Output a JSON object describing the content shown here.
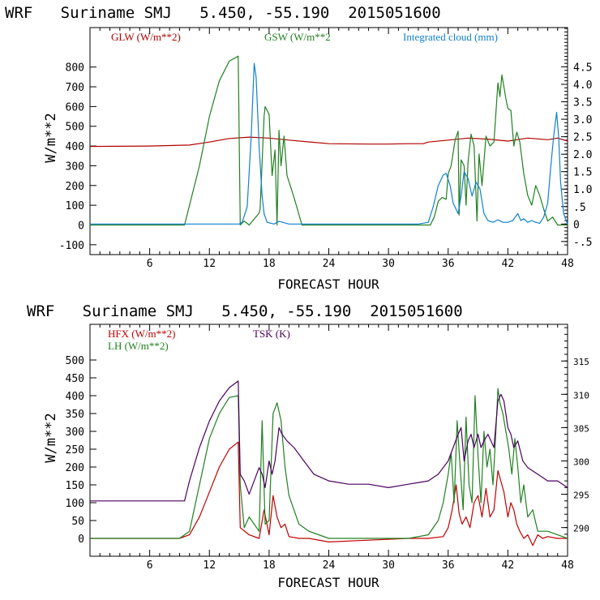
{
  "chart_data": [
    {
      "type": "line",
      "title": "WRF   Suriname SMJ   5.450, -55.190  2015051600",
      "xlabel": "FORECAST HOUR",
      "ylabel": "W/m**2",
      "xlim": [
        0,
        48
      ],
      "ylim": [
        -150,
        1000
      ],
      "y2lim": [
        -0.875,
        5.625
      ],
      "x_ticks": [
        6,
        12,
        18,
        24,
        30,
        36,
        42,
        48
      ],
      "x_tick_labels": [
        "6",
        "12",
        "18",
        "24",
        "30",
        "36",
        "42",
        "48"
      ],
      "y_ticks": [
        -100,
        0,
        100,
        200,
        300,
        400,
        500,
        600,
        700,
        800
      ],
      "y_tick_labels": [
        "-100",
        "0",
        "100",
        "200",
        "300",
        "400",
        "500",
        "600",
        "700",
        "800"
      ],
      "y2_ticks": [
        -0.5,
        0,
        0.5,
        1.0,
        1.5,
        2.0,
        2.5,
        3.0,
        3.5,
        4.0,
        4.5
      ],
      "y2_tick_labels": [
        "-.5",
        "0",
        ".5",
        "1.0",
        "1.5",
        "2.0",
        "2.5",
        "3.0",
        "3.5",
        "4.0",
        "4.5"
      ],
      "series": [
        {
          "name": "GLW (W/m**2)",
          "axis": "left",
          "color": "#b00000",
          "x": [
            0,
            6,
            10,
            12,
            14,
            16,
            18,
            20,
            24,
            28,
            30,
            32,
            33.5,
            34,
            36,
            38,
            40,
            42,
            44,
            46,
            47,
            48
          ],
          "values": [
            398,
            400,
            405,
            420,
            438,
            445,
            440,
            430,
            412,
            410,
            410,
            412,
            412,
            420,
            430,
            440,
            435,
            425,
            440,
            432,
            440,
            425
          ]
        },
        {
          "name": "GSW (W/m**2",
          "axis": "left",
          "color": "#208020",
          "x": [
            0,
            9.5,
            11,
            12,
            13,
            14,
            14.9,
            15.1,
            15.5,
            16,
            17,
            17.1,
            17.5,
            17.6,
            18,
            18.3,
            18.6,
            18.8,
            19,
            19.2,
            19.5,
            19.8,
            20.5,
            21.3,
            22,
            33,
            34.2,
            34.6,
            35,
            35.4,
            35.8,
            36,
            36.3,
            36.7,
            37,
            37.1,
            37.3,
            37.6,
            37.8,
            38,
            38.3,
            38.6,
            38.9,
            39.1,
            39.4,
            39.8,
            40.2,
            40.6,
            41,
            41.2,
            41.4,
            41.6,
            41.8,
            42,
            42.3,
            42.6,
            42.9,
            43.2,
            43.6,
            44,
            44.4,
            44.8,
            45.2,
            45.6,
            46,
            46.5,
            47,
            48
          ],
          "values": [
            0,
            0,
            300,
            550,
            730,
            830,
            855,
            0,
            20,
            0,
            60,
            80,
            550,
            600,
            560,
            250,
            380,
            0,
            480,
            300,
            450,
            250,
            140,
            0,
            0,
            0,
            0,
            40,
            120,
            140,
            130,
            260,
            300,
            430,
            475,
            50,
            330,
            300,
            100,
            320,
            460,
            400,
            20,
            360,
            200,
            450,
            400,
            420,
            720,
            650,
            760,
            700,
            640,
            590,
            580,
            400,
            470,
            420,
            260,
            150,
            100,
            200,
            150,
            80,
            20,
            40,
            0,
            0
          ]
        },
        {
          "name": "Integrated cloud (mm)",
          "axis": "right",
          "color": "#1080d0",
          "x": [
            0,
            15,
            15.3,
            15.8,
            16.2,
            16.5,
            16.7,
            17,
            17.3,
            17.5,
            17.8,
            18.5,
            19,
            20,
            33,
            34,
            34.5,
            35,
            35.5,
            35.8,
            36.2,
            36.5,
            37,
            37.3,
            37.6,
            38,
            38.4,
            38.8,
            39.2,
            39.6,
            40,
            40.5,
            41,
            41.5,
            42,
            42.5,
            43,
            43.3,
            43.6,
            44,
            44.4,
            44.8,
            45.2,
            45.6,
            46,
            46.3,
            46.6,
            46.9,
            47.1,
            47.3,
            47.6,
            48
          ],
          "values": [
            0,
            0,
            0.05,
            0.5,
            2.5,
            4.6,
            4.2,
            2.2,
            0.8,
            0.3,
            0.05,
            0,
            0.08,
            0,
            0,
            0.05,
            0.5,
            1.1,
            1.4,
            1.45,
            1.1,
            0.6,
            0.3,
            0.8,
            1.5,
            1.3,
            0.8,
            1.2,
            1.0,
            0.3,
            0.1,
            0.05,
            0.12,
            0.05,
            0.05,
            0.1,
            0.3,
            0.1,
            0.15,
            0.05,
            0.1,
            0.05,
            0.02,
            0.2,
            0.6,
            1.6,
            2.5,
            3.2,
            2.5,
            1.2,
            0.3,
            0
          ]
        }
      ]
    },
    {
      "type": "line",
      "title": "WRF   Suriname SMJ   5.450, -55.190  2015051600",
      "xlabel": "FORECAST HOUR",
      "ylabel": "W/m**2",
      "xlim": [
        0,
        48
      ],
      "ylim": [
        -50,
        600
      ],
      "y2lim": [
        285.7,
        320.5
      ],
      "x_ticks": [
        6,
        12,
        18,
        24,
        30,
        36,
        42,
        48
      ],
      "x_tick_labels": [
        "6",
        "12",
        "18",
        "24",
        "30",
        "36",
        "42",
        "48"
      ],
      "y_ticks": [
        0,
        50,
        100,
        150,
        200,
        250,
        300,
        350,
        400,
        450,
        500
      ],
      "y_tick_labels": [
        "0",
        "50",
        "100",
        "150",
        "200",
        "250",
        "300",
        "350",
        "400",
        "450",
        "500"
      ],
      "y2_ticks": [
        290,
        295,
        300,
        305,
        310,
        315
      ],
      "y2_tick_labels": [
        "290",
        "295",
        "300",
        "305",
        "310",
        "315"
      ],
      "series": [
        {
          "name": "HFX (W/m**2)",
          "axis": "left",
          "color": "#c00000",
          "x": [
            0,
            9,
            10,
            11,
            12,
            13,
            14,
            14.9,
            15.1,
            16,
            17,
            17.5,
            18,
            18.4,
            18.8,
            19.2,
            19.6,
            20,
            21,
            22,
            24,
            28,
            32,
            34,
            35.5,
            36,
            36.4,
            36.8,
            37.1,
            37.4,
            37.8,
            38.2,
            38.6,
            39,
            39.4,
            39.8,
            40.2,
            40.6,
            41,
            41.3,
            41.6,
            42,
            42.3,
            42.6,
            42.9,
            43.2,
            43.6,
            44,
            44.5,
            45,
            45.5,
            46,
            47,
            48
          ],
          "values": [
            0,
            0,
            10,
            60,
            130,
            200,
            250,
            270,
            30,
            10,
            0,
            80,
            10,
            120,
            60,
            30,
            40,
            5,
            0,
            0,
            -10,
            -5,
            0,
            0,
            5,
            30,
            80,
            150,
            70,
            40,
            60,
            30,
            100,
            120,
            60,
            140,
            60,
            80,
            190,
            160,
            130,
            60,
            100,
            80,
            40,
            20,
            0,
            10,
            -20,
            10,
            0,
            5,
            0,
            0
          ]
        },
        {
          "name": "LH (W/m**2)",
          "axis": "left",
          "color": "#208020",
          "x": [
            0,
            9,
            10,
            11,
            12,
            13,
            14,
            14.9,
            15.1,
            15.5,
            16,
            17,
            17.3,
            17.6,
            18,
            18.4,
            18.8,
            19.2,
            19.6,
            20,
            21,
            22,
            24,
            28,
            32,
            34,
            35,
            35.5,
            36,
            36.3,
            36.6,
            36.9,
            37.2,
            37.5,
            37.8,
            38.1,
            38.4,
            38.7,
            39,
            39.3,
            39.6,
            39.9,
            40.2,
            40.5,
            40.8,
            41,
            41.2,
            41.5,
            41.8,
            42.1,
            42.4,
            42.7,
            43,
            43.3,
            43.6,
            44,
            44.5,
            45,
            46,
            47,
            48
          ],
          "values": [
            0,
            0,
            20,
            150,
            280,
            350,
            395,
            400,
            150,
            30,
            60,
            20,
            330,
            40,
            50,
            350,
            380,
            330,
            200,
            120,
            40,
            20,
            0,
            0,
            0,
            10,
            50,
            100,
            180,
            240,
            100,
            330,
            200,
            80,
            340,
            150,
            100,
            400,
            230,
            100,
            300,
            200,
            250,
            150,
            300,
            420,
            380,
            350,
            300,
            250,
            180,
            280,
            200,
            100,
            150,
            60,
            80,
            20,
            20,
            10,
            0
          ]
        },
        {
          "name": "TSK (K)",
          "axis": "right",
          "color": "#4a0060",
          "x": [
            0,
            9.5,
            10,
            11,
            12,
            13,
            14,
            14.9,
            15.1,
            15.5,
            16,
            17,
            17.3,
            17.6,
            18,
            18.3,
            18.6,
            19,
            19.3,
            19.8,
            20.5,
            21.5,
            22.5,
            24,
            26,
            28,
            30,
            32,
            34,
            35,
            35.5,
            36,
            36.5,
            37,
            37.3,
            37.6,
            38,
            38.3,
            38.6,
            39,
            39.3,
            39.6,
            40,
            40.3,
            40.6,
            41,
            41.3,
            41.6,
            42,
            42.3,
            42.6,
            43,
            43.5,
            44,
            45,
            46,
            47,
            48
          ],
          "values": [
            294,
            294,
            297,
            302,
            306,
            309,
            311,
            312,
            298,
            297,
            295,
            299,
            298,
            296,
            300,
            298,
            300,
            305,
            304,
            303,
            302,
            300,
            298,
            297,
            296.5,
            296.5,
            296,
            296.5,
            297,
            298,
            299,
            300,
            302,
            304,
            305,
            300,
            303,
            304,
            302,
            304,
            302,
            303,
            304,
            303,
            302,
            309,
            310,
            309,
            305,
            304,
            302,
            303,
            300,
            299,
            298,
            297,
            297,
            296
          ]
        }
      ]
    }
  ]
}
